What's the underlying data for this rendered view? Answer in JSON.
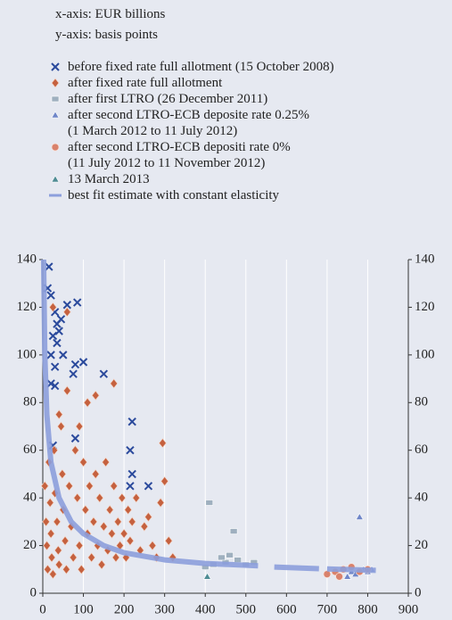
{
  "chart_data": {
    "type": "scatter",
    "x_label": "x-axis: EUR billions",
    "y_label": "y-axis: basis points",
    "xlim": [
      0,
      900
    ],
    "xticks": [
      0,
      100,
      200,
      300,
      400,
      500,
      600,
      700,
      800,
      900
    ],
    "ylim": [
      0,
      140
    ],
    "yticks": [
      0,
      20,
      40,
      60,
      80,
      100,
      120,
      140
    ],
    "y2lim": [
      0,
      140
    ],
    "y2ticks": [
      0,
      20,
      40,
      60,
      80,
      100,
      120,
      140
    ],
    "grid": true,
    "series": [
      {
        "name": "before fixed rate full allotment (15 October 2008)",
        "color": "#2b4a9c",
        "marker": "x",
        "x": [
          15,
          20,
          60,
          85,
          30,
          35,
          25,
          50,
          80,
          100,
          75,
          150,
          20,
          30,
          220,
          80,
          215,
          220,
          215,
          260,
          25,
          35,
          40,
          30,
          20,
          45,
          12
        ],
        "values": [
          137,
          125,
          121,
          122,
          118,
          113,
          108,
          100,
          96,
          97,
          92,
          92,
          88,
          87,
          72,
          65,
          60,
          50,
          45,
          45,
          62,
          105,
          110,
          95,
          100,
          115,
          128
        ]
      },
      {
        "name": "after fixed rate full allotment",
        "color": "#c5613f",
        "marker": "diamond",
        "x": [
          5,
          8,
          10,
          12,
          15,
          18,
          20,
          22,
          25,
          28,
          30,
          35,
          38,
          40,
          45,
          48,
          50,
          55,
          58,
          60,
          65,
          70,
          75,
          80,
          85,
          90,
          95,
          100,
          105,
          110,
          115,
          120,
          125,
          130,
          135,
          140,
          145,
          150,
          155,
          160,
          165,
          170,
          175,
          180,
          185,
          190,
          195,
          200,
          205,
          210,
          215,
          220,
          230,
          240,
          250,
          260,
          270,
          280,
          290,
          300,
          310,
          320,
          295,
          25,
          60,
          130,
          175,
          110,
          40,
          90
        ],
        "values": [
          45,
          30,
          20,
          10,
          55,
          38,
          25,
          15,
          8,
          60,
          42,
          30,
          18,
          12,
          70,
          50,
          35,
          22,
          10,
          85,
          45,
          28,
          15,
          60,
          40,
          20,
          10,
          55,
          35,
          25,
          45,
          15,
          30,
          50,
          20,
          40,
          12,
          28,
          55,
          18,
          35,
          25,
          45,
          15,
          30,
          20,
          40,
          25,
          15,
          35,
          22,
          30,
          40,
          18,
          28,
          32,
          20,
          15,
          38,
          47,
          22,
          15,
          63,
          120,
          118,
          83,
          88,
          80,
          75,
          70
        ]
      },
      {
        "name": "after first LTRO (26 December 2011)",
        "color": "#9fb0bf",
        "marker": "square",
        "x": [
          410,
          470,
          420,
          450,
          480,
          500,
          520,
          400,
          440,
          460
        ],
        "values": [
          38,
          26,
          12,
          13,
          14,
          12,
          13,
          11,
          15,
          16
        ]
      },
      {
        "name": "after second LTRO-ECB deposite rate 0.25%\n(1 March 2012 to 11 July 2012)",
        "color": "#6f86c8",
        "marker": "triangle",
        "x": [
          780,
          760,
          770,
          790,
          800,
          810,
          750
        ],
        "values": [
          32,
          9,
          8,
          10,
          9,
          10,
          7
        ]
      },
      {
        "name": "after second LTRO-ECB depositi rate 0%\n(11 July 2012 to 11 November 2012)",
        "color": "#d9826c",
        "marker": "circle",
        "x": [
          700,
          720,
          740,
          760,
          780,
          800,
          730
        ],
        "values": [
          8,
          9,
          10,
          11,
          9,
          10,
          7
        ]
      },
      {
        "name": "13 March 2013",
        "color": "#4f8c94",
        "marker": "triangle",
        "x": [
          405
        ],
        "values": [
          7
        ]
      },
      {
        "name": "best fit estimate with constant elasticity",
        "color": "#8c9fdc",
        "marker": "line",
        "x": [
          2,
          5,
          10,
          20,
          40,
          70,
          100,
          150,
          200,
          300,
          400,
          530,
          550,
          570,
          680,
          690,
          700,
          820
        ],
        "values": [
          140,
          100,
          75,
          55,
          40,
          30,
          25,
          20,
          17,
          14,
          12.5,
          11.5,
          null,
          11,
          10.3,
          null,
          10.2,
          9.6
        ]
      }
    ]
  }
}
